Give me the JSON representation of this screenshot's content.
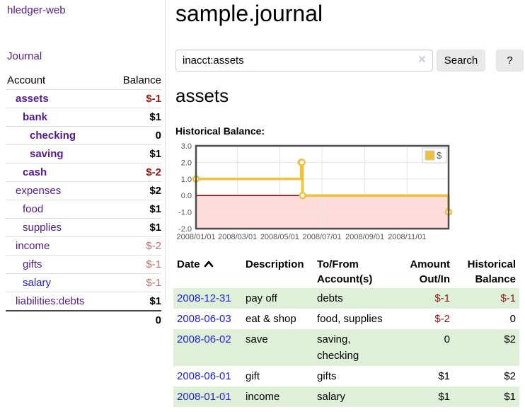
{
  "app": {
    "brand": "hledger-web",
    "nav_journal": "Journal"
  },
  "sidebar": {
    "account_header": "Account",
    "balance_header": "Balance",
    "accounts": [
      {
        "name": "assets",
        "balance": "$-1",
        "indent": 1,
        "bold": true,
        "balance_style": "neg-strong",
        "link_color": "purple"
      },
      {
        "name": "bank",
        "balance": "$1",
        "indent": 2,
        "bold": true,
        "balance_style": "",
        "link_color": "purple"
      },
      {
        "name": "checking",
        "balance": "0",
        "indent": 3,
        "bold": true,
        "balance_style": "",
        "link_color": "purple"
      },
      {
        "name": "saving",
        "balance": "$1",
        "indent": 3,
        "bold": true,
        "balance_style": "",
        "link_color": "purple"
      },
      {
        "name": "cash",
        "balance": "$-2",
        "indent": 2,
        "bold": true,
        "balance_style": "neg-strong",
        "link_color": "purple"
      },
      {
        "name": "expenses",
        "balance": "$2",
        "indent": 1,
        "bold": false,
        "balance_style": "",
        "link_color": "purple"
      },
      {
        "name": "food",
        "balance": "$1",
        "indent": 2,
        "bold": false,
        "balance_style": "",
        "link_color": "purple"
      },
      {
        "name": "supplies",
        "balance": "$1",
        "indent": 2,
        "bold": false,
        "balance_style": "",
        "link_color": "purple"
      },
      {
        "name": "income",
        "balance": "$-2",
        "indent": 1,
        "bold": false,
        "balance_style": "neg-soft",
        "link_color": "purple"
      },
      {
        "name": "gifts",
        "balance": "$-1",
        "indent": 2,
        "bold": false,
        "balance_style": "neg-soft",
        "link_color": "purple"
      },
      {
        "name": "salary",
        "balance": "$-1",
        "indent": 2,
        "bold": false,
        "balance_style": "neg-soft",
        "link_color": "blue"
      },
      {
        "name": "liabilities:debts",
        "balance": "$1",
        "indent": 1,
        "bold": false,
        "balance_style": "",
        "link_color": "purple"
      }
    ],
    "total": "0"
  },
  "header": {
    "title": "sample.journal"
  },
  "search": {
    "value": "inacct:assets",
    "clear_icon": "×",
    "button_label": "Search",
    "help_label": "?"
  },
  "account_page": {
    "title": "assets",
    "chart_label": "Historical Balance:"
  },
  "chart_data": {
    "type": "line",
    "step": true,
    "series": [
      {
        "name": "$",
        "color": "#edc240",
        "points": [
          {
            "date": "2008-01-01",
            "value": 1
          },
          {
            "date": "2008-06-01",
            "value": 2
          },
          {
            "date": "2008-06-02",
            "value": 2
          },
          {
            "date": "2008-06-03",
            "value": 0
          },
          {
            "date": "2008-12-31",
            "value": -1
          }
        ]
      }
    ],
    "ylim": [
      -2.0,
      3.0
    ],
    "yticks": [
      3.0,
      2.0,
      1.0,
      0.0,
      -1.0,
      -2.0
    ],
    "xticks": [
      "2008/01/01",
      "2008/03/01",
      "2008/05/01",
      "2008/07/01",
      "2008/09/01",
      "2008/11/01"
    ],
    "x_range": [
      "2008-01-01",
      "2008-12-31"
    ],
    "legend": {
      "position": "top-right",
      "label": "$"
    },
    "grid": true,
    "grid_color": "#e3e3e3",
    "negative_region_color": "#ffdcdc",
    "zero_line_color": "#8b0000",
    "border_color": "#4d4d4d"
  },
  "register": {
    "columns": [
      {
        "label": "Date",
        "sort": "asc",
        "align": "left"
      },
      {
        "label": "Description",
        "align": "left"
      },
      {
        "label": "To/From Account(s)",
        "align": "left"
      },
      {
        "label": "Amount Out/In",
        "align": "right"
      },
      {
        "label": "Historical Balance",
        "align": "right"
      }
    ],
    "rows": [
      {
        "date": "2008-12-31",
        "description": "pay off",
        "accounts": "debts",
        "amount": "$-1",
        "amount_neg": true,
        "balance": "$-1",
        "balance_neg": true
      },
      {
        "date": "2008-06-03",
        "description": "eat & shop",
        "accounts": "food, supplies",
        "amount": "$-2",
        "amount_neg": true,
        "balance": "0",
        "balance_neg": false
      },
      {
        "date": "2008-06-02",
        "description": "save",
        "accounts": "saving, checking",
        "amount": "0",
        "amount_neg": false,
        "balance": "$2",
        "balance_neg": false
      },
      {
        "date": "2008-06-01",
        "description": "gift",
        "accounts": "gifts",
        "amount": "$1",
        "amount_neg": false,
        "balance": "$2",
        "balance_neg": false
      },
      {
        "date": "2008-01-01",
        "description": "income",
        "accounts": "salary",
        "amount": "$1",
        "amount_neg": false,
        "balance": "$1",
        "balance_neg": false
      }
    ]
  }
}
